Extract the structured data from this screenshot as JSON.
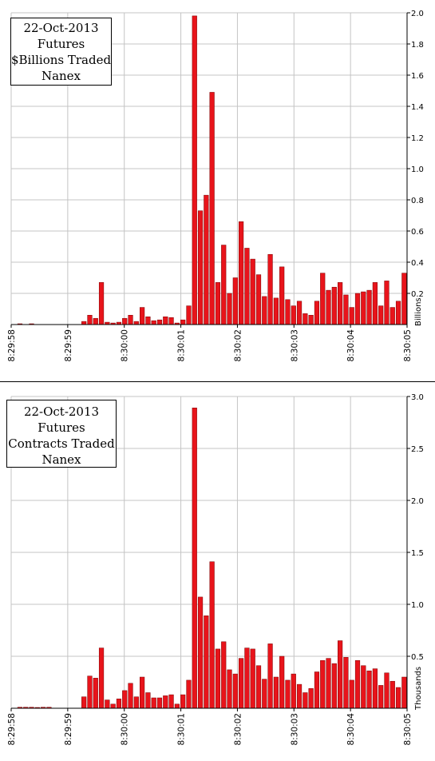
{
  "chart_data": [
    {
      "type": "bar",
      "title_lines": [
        "22-Oct-2013",
        "Futures",
        "$Billions Traded",
        "Nanex"
      ],
      "unit_label": "Billions",
      "ylim": [
        0,
        2.0
      ],
      "y_ticks": [
        0.2,
        0.4,
        0.6,
        0.8,
        1.0,
        1.2,
        1.4,
        1.6,
        1.8,
        2.0
      ],
      "y_tick_labels": [
        "0.2",
        "0.4",
        "0.6",
        "0.8",
        "1.0",
        "1.2",
        "1.4",
        "1.6",
        "1.8",
        "2.0"
      ],
      "x_tick_labels": [
        "8:29:58",
        "8:29:59",
        "8:30:00",
        "8:30:01",
        "8:30:02",
        "8:30:03",
        "8:30:04",
        "8:30:05"
      ],
      "grid": true,
      "bar_color": "#e8141b",
      "values": [
        0,
        0.005,
        0,
        0.005,
        0,
        0,
        0,
        0,
        0,
        0,
        0,
        0,
        0.02,
        0.06,
        0.04,
        0.27,
        0.015,
        0.01,
        0.015,
        0.04,
        0.06,
        0.02,
        0.11,
        0.05,
        0.025,
        0.03,
        0.05,
        0.045,
        0.01,
        0.03,
        0.12,
        1.98,
        0.73,
        0.83,
        1.49,
        0.27,
        0.51,
        0.2,
        0.3,
        0.66,
        0.49,
        0.42,
        0.32,
        0.18,
        0.45,
        0.17,
        0.37,
        0.16,
        0.12,
        0.15,
        0.07,
        0.06,
        0.15,
        0.33,
        0.22,
        0.24,
        0.27,
        0.19,
        0.11,
        0.2,
        0.21,
        0.22,
        0.27,
        0.12,
        0.28,
        0.11,
        0.15,
        0.33
      ]
    },
    {
      "type": "bar",
      "title_lines": [
        "22-Oct-2013",
        "Futures",
        "Contracts Traded",
        "Nanex"
      ],
      "unit_label": "Thousands",
      "ylim": [
        0,
        3.0
      ],
      "y_ticks": [
        0.5,
        1.0,
        1.5,
        2.0,
        2.5,
        3.0
      ],
      "y_tick_labels": [
        "0.5",
        "1.0",
        "1.5",
        "2.0",
        "2.5",
        "3.0"
      ],
      "x_tick_labels": [
        "8:29:58",
        "8:29:59",
        "8:30:00",
        "8:30:01",
        "8:30:02",
        "8:30:03",
        "8:30:04",
        "8:30:05"
      ],
      "grid": true,
      "bar_color": "#e8141b",
      "values": [
        0,
        0.01,
        0.01,
        0.01,
        0.005,
        0.01,
        0.01,
        0,
        0,
        0,
        0,
        0,
        0.11,
        0.31,
        0.29,
        0.58,
        0.08,
        0.04,
        0.09,
        0.17,
        0.24,
        0.11,
        0.3,
        0.15,
        0.1,
        0.1,
        0.12,
        0.13,
        0.04,
        0.13,
        0.27,
        2.89,
        1.07,
        0.89,
        1.41,
        0.57,
        0.64,
        0.37,
        0.33,
        0.48,
        0.58,
        0.57,
        0.41,
        0.28,
        0.62,
        0.3,
        0.5,
        0.27,
        0.33,
        0.23,
        0.15,
        0.19,
        0.35,
        0.46,
        0.48,
        0.43,
        0.65,
        0.49,
        0.27,
        0.46,
        0.41,
        0.36,
        0.38,
        0.22,
        0.34,
        0.26,
        0.2,
        0.3
      ]
    }
  ]
}
